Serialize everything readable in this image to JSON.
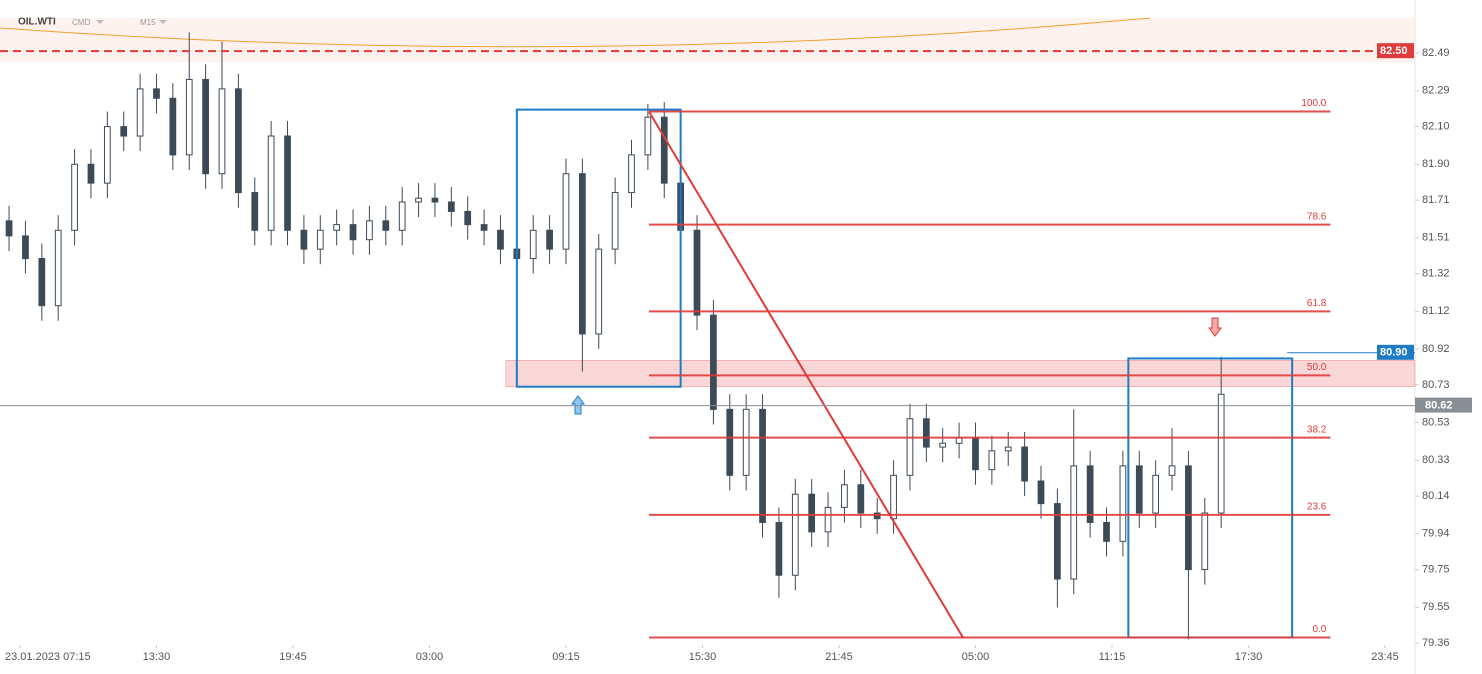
{
  "chart_data": {
    "type": "candlestick",
    "symbol": "OIL.WTI",
    "market": "CMD",
    "interval": "M15",
    "xlim": [
      -3.66,
      255.5
    ],
    "ylim": [
      79.35,
      82.676
    ],
    "xticks": [
      {
        "value": 0,
        "label": "23.01.2023  07:15"
      },
      {
        "value": 25,
        "label": "13:30"
      },
      {
        "value": 50,
        "label": "19:45"
      },
      {
        "value": 75,
        "label": "03:00"
      },
      {
        "value": 100,
        "label": "09:15"
      },
      {
        "value": 125,
        "label": "15:30"
      },
      {
        "value": 150,
        "label": "21:45"
      },
      {
        "value": 175,
        "label": "05:00"
      },
      {
        "value": 200,
        "label": "11:15"
      },
      {
        "value": 225,
        "label": "17:30"
      },
      {
        "value": 250,
        "label": "23:45"
      }
    ],
    "yticks": [
      82.49,
      82.29,
      {
        "value": 82.1,
        "label": "82.10"
      },
      {
        "value": 81.9,
        "label": "81.90"
      },
      81.71,
      81.51,
      81.32,
      81.12,
      80.92,
      80.73,
      80.53,
      80.33,
      80.14,
      79.94,
      79.75,
      79.55,
      79.36
    ],
    "up_color": "#ffffff",
    "down_color": "#3d4a57",
    "wick_color": "#3d4a57",
    "candles": {
      "x": [
        -2,
        1,
        4,
        7,
        10,
        13,
        16,
        19,
        22,
        25,
        28,
        31,
        34,
        37,
        40,
        43,
        46,
        49,
        52,
        55,
        58,
        61,
        64,
        67,
        70,
        73,
        76,
        79,
        82,
        85,
        88,
        91,
        94,
        97,
        100,
        103,
        106,
        109,
        112,
        115,
        118,
        121,
        124,
        127,
        130,
        133,
        136,
        139,
        142,
        145,
        148,
        151,
        154,
        157,
        160,
        163,
        166,
        169,
        172,
        175,
        178,
        181,
        184,
        187,
        190,
        193,
        196,
        199,
        202,
        205,
        208,
        211,
        214,
        217,
        220
      ],
      "open": [
        81.6,
        81.52,
        81.4,
        81.15,
        81.55,
        81.9,
        81.8,
        82.1,
        82.05,
        82.3,
        82.25,
        81.95,
        82.35,
        81.85,
        82.3,
        81.75,
        81.55,
        82.05,
        81.55,
        81.45,
        81.55,
        81.58,
        81.5,
        81.6,
        81.55,
        81.7,
        81.72,
        81.7,
        81.65,
        81.58,
        81.55,
        81.45,
        81.4,
        81.55,
        81.45,
        81.85,
        81.0,
        81.45,
        81.75,
        81.95,
        82.15,
        81.8,
        81.55,
        81.1,
        80.6,
        80.25,
        80.6,
        80.0,
        79.72,
        80.15,
        79.95,
        80.08,
        80.2,
        80.05,
        80.02,
        80.25,
        80.55,
        80.4,
        80.42,
        80.45,
        80.28,
        80.38,
        80.4,
        80.22,
        80.1,
        79.7,
        80.3,
        80.0,
        79.9,
        80.3,
        80.05,
        80.25,
        80.3,
        79.75,
        80.05
      ],
      "high": [
        81.68,
        81.6,
        81.48,
        81.63,
        81.98,
        81.98,
        82.18,
        82.18,
        82.38,
        82.38,
        82.33,
        82.6,
        82.43,
        82.55,
        82.38,
        81.83,
        82.13,
        82.13,
        81.63,
        81.63,
        81.66,
        81.66,
        81.68,
        81.68,
        81.78,
        81.8,
        81.8,
        81.78,
        81.73,
        81.66,
        81.63,
        81.53,
        81.63,
        81.63,
        81.93,
        81.93,
        81.53,
        81.83,
        82.03,
        82.22,
        82.23,
        81.88,
        81.63,
        81.18,
        80.68,
        80.68,
        80.68,
        80.08,
        80.23,
        80.23,
        80.16,
        80.28,
        80.28,
        80.13,
        80.33,
        80.63,
        80.63,
        80.5,
        80.53,
        80.53,
        80.46,
        80.48,
        80.48,
        80.3,
        80.18,
        80.6,
        80.38,
        80.08,
        80.38,
        80.38,
        80.33,
        80.5,
        80.38,
        80.13,
        80.88
      ],
      "low": [
        81.44,
        81.32,
        81.07,
        81.07,
        81.47,
        81.72,
        81.72,
        81.97,
        81.97,
        82.17,
        81.87,
        81.87,
        81.77,
        81.77,
        81.67,
        81.47,
        81.47,
        81.47,
        81.37,
        81.37,
        81.47,
        81.42,
        81.42,
        81.47,
        81.47,
        81.62,
        81.62,
        81.57,
        81.5,
        81.47,
        81.37,
        81.32,
        81.32,
        81.37,
        81.37,
        80.8,
        80.92,
        81.37,
        81.67,
        81.87,
        81.72,
        81.47,
        81.02,
        80.52,
        80.17,
        80.17,
        79.92,
        79.6,
        79.64,
        79.87,
        79.87,
        80.0,
        79.97,
        79.94,
        79.94,
        80.17,
        80.32,
        80.32,
        80.34,
        80.2,
        80.2,
        80.3,
        80.14,
        80.02,
        79.55,
        79.62,
        79.92,
        79.82,
        79.82,
        79.97,
        79.97,
        80.17,
        79.38,
        79.67,
        79.97
      ],
      "close": [
        81.52,
        81.4,
        81.15,
        81.55,
        81.9,
        81.8,
        82.1,
        82.05,
        82.3,
        82.25,
        81.95,
        82.35,
        81.85,
        82.3,
        81.75,
        81.55,
        82.05,
        81.55,
        81.45,
        81.55,
        81.58,
        81.5,
        81.6,
        81.55,
        81.7,
        81.72,
        81.7,
        81.65,
        81.58,
        81.55,
        81.45,
        81.4,
        81.55,
        81.45,
        81.85,
        81.0,
        81.45,
        81.75,
        81.95,
        82.15,
        81.8,
        81.55,
        81.1,
        80.6,
        80.25,
        80.6,
        80.0,
        79.72,
        80.15,
        79.95,
        80.08,
        80.2,
        80.05,
        80.02,
        80.25,
        80.55,
        80.4,
        80.42,
        80.45,
        80.28,
        80.38,
        80.4,
        80.22,
        80.1,
        79.7,
        80.3,
        80.0,
        79.9,
        80.3,
        80.05,
        80.25,
        80.3,
        79.75,
        80.05,
        80.68
      ]
    },
    "fib": {
      "x": [
        115.2,
        240
      ],
      "color": "#e03a3a",
      "levels": [
        {
          "label": "100.0",
          "price": 82.18
        },
        {
          "label": "78.6",
          "price": 81.58
        },
        {
          "label": "61.8",
          "price": 81.12
        },
        {
          "label": "50.0",
          "price": 80.78
        },
        {
          "label": "38.2",
          "price": 80.45
        },
        {
          "label": "23.6",
          "price": 80.04
        },
        {
          "label": "0.0",
          "price": 79.39
        }
      ]
    },
    "trendline": {
      "x": [
        115.2,
        172.7
      ],
      "y": [
        82.18,
        79.39
      ],
      "color": "#e03a3a"
    },
    "zone": {
      "x": [
        89,
        255.5
      ],
      "y": [
        80.72,
        80.86
      ],
      "color": "#f4b6b6"
    },
    "boxes": [
      {
        "x": [
          91,
          121
        ],
        "y": [
          80.72,
          82.19
        ],
        "color": "#1e7bc4"
      },
      {
        "x": [
          203,
          233
        ],
        "y": [
          79.39,
          80.87
        ],
        "color": "#1e7bc4"
      }
    ],
    "price_lines": [
      {
        "value": 82.5,
        "label": "82.50",
        "color": "#e03a3a",
        "style": "dashed"
      },
      {
        "value": 80.62,
        "label": "80.62",
        "color": "#8a8f96",
        "style": "solid"
      },
      {
        "value": 80.9,
        "label": "80.90",
        "color": "#1e7bc4",
        "style": "solid"
      }
    ]
  }
}
